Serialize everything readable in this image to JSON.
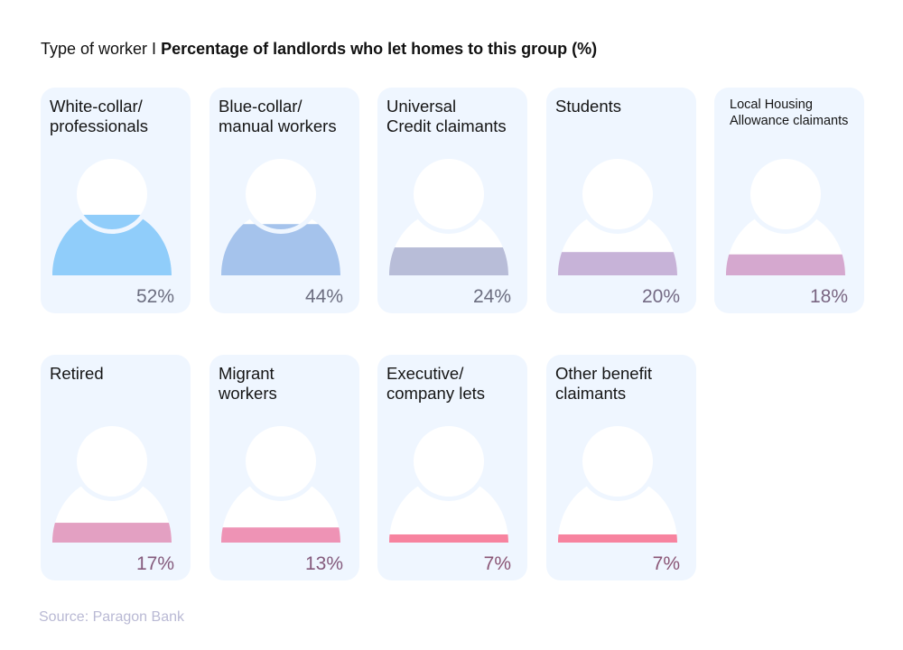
{
  "title": {
    "prefix": "Type of worker I ",
    "main": "Percentage of landlords who let homes to this group (%)"
  },
  "source": "Source: Paragon Bank",
  "chart_data": {
    "type": "pictogram",
    "title": "Type of worker I Percentage of landlords who let homes to this group (%)",
    "unit": "%",
    "categories": [
      {
        "label_lines": [
          "White-collar/",
          "professionals"
        ],
        "value": 52,
        "value_label": "52%",
        "color": "#90cdfa",
        "text_color": "#6c6e80"
      },
      {
        "label_lines": [
          "Blue-collar/",
          "manual workers"
        ],
        "value": 44,
        "value_label": "44%",
        "color": "#a5c3ec",
        "text_color": "#6c6e80"
      },
      {
        "label_lines": [
          "Universal",
          "Credit claimants"
        ],
        "value": 24,
        "value_label": "24%",
        "color": "#b8bdd8",
        "text_color": "#6c6e80"
      },
      {
        "label_lines": [
          "Students"
        ],
        "value": 20,
        "value_label": "20%",
        "color": "#c7b3d8",
        "text_color": "#746a84"
      },
      {
        "label_lines": [
          "Local Housing",
          "Allowance claimants"
        ],
        "value": 18,
        "value_label": "18%",
        "color": "#d5a8cf",
        "text_color": "#7a6682",
        "small": true
      },
      {
        "label_lines": [
          "Retired"
        ],
        "value": 17,
        "value_label": "17%",
        "color": "#e3a0c2",
        "text_color": "#845a7c"
      },
      {
        "label_lines": [
          "Migrant",
          "workers"
        ],
        "value": 13,
        "value_label": "13%",
        "color": "#ee93b5",
        "text_color": "#845a7c"
      },
      {
        "label_lines": [
          "Executive/",
          "company lets"
        ],
        "value": 7,
        "value_label": "7%",
        "color": "#f7839f",
        "text_color": "#8a5575"
      },
      {
        "label_lines": [
          "Other benefit",
          "claimants"
        ],
        "value": 7,
        "value_label": "7%",
        "color": "#f7839f",
        "text_color": "#8a5575"
      }
    ],
    "card_background": "#eff6ff"
  }
}
